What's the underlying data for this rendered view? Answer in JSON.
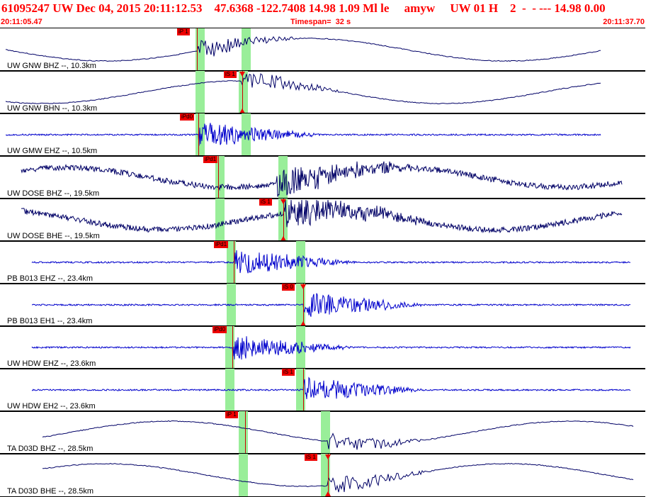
{
  "header": {
    "title": "61095247 UW Dec 04, 2015 20:11:12.53    47.6368 -122.7408 14.98 1.09 Ml le     amyw     UW 01 H    2  -  - --- 14.98 0.00",
    "start_time": "20:11:05.47",
    "timespan": "Timespan=  32 s",
    "end_time": "20:11:37.70"
  },
  "traces": [
    {
      "channel": "UW GNW BHZ --, 10.3km",
      "color": "#000066",
      "type": "long",
      "pick": {
        "label": "iP 1",
        "marker": "line"
      }
    },
    {
      "channel": "UW GNW BHN --, 10.3km",
      "color": "#000066",
      "type": "long",
      "pick": {
        "label": "iS 1",
        "marker": "tri"
      }
    },
    {
      "channel": "UW GMW EHZ --, 10.5km",
      "color": "#0000cc",
      "type": "short",
      "pick": {
        "label": "iPd0",
        "marker": "line"
      }
    },
    {
      "channel": "UW DOSE BHZ --, 19.5km",
      "color": "#000066",
      "type": "noisy",
      "pick": {
        "label": "iPd1",
        "marker": "line"
      }
    },
    {
      "channel": "UW DOSE BHE --, 19.5km",
      "color": "#000066",
      "type": "noisy",
      "pick": {
        "label": "iS 1",
        "marker": "tri"
      }
    },
    {
      "channel": "PB B013 EHZ --, 23.4km",
      "color": "#0000cc",
      "type": "short",
      "pick": {
        "label": "iPd1",
        "marker": "line"
      }
    },
    {
      "channel": "PB B013 EH1 --, 23.4km",
      "color": "#0000cc",
      "type": "short",
      "pick": {
        "label": "iS 0",
        "marker": "tri"
      }
    },
    {
      "channel": "UW HDW EHZ --, 23.6km",
      "color": "#0000cc",
      "type": "short",
      "pick": {
        "label": "iPd0",
        "marker": "line"
      }
    },
    {
      "channel": "UW HDW EH2 --, 23.6km",
      "color": "#0000cc",
      "type": "short",
      "pick": {
        "label": "iS 1",
        "marker": "line"
      }
    },
    {
      "channel": "TA D03D BHZ --, 28.5km",
      "color": "#000066",
      "type": "long",
      "pick": {
        "label": "iP 1",
        "marker": "line"
      }
    },
    {
      "channel": "TA D03D BHE --, 28.5km",
      "color": "#000066",
      "type": "long",
      "pick": {
        "label": "iS 1",
        "marker": "tri"
      }
    }
  ]
}
